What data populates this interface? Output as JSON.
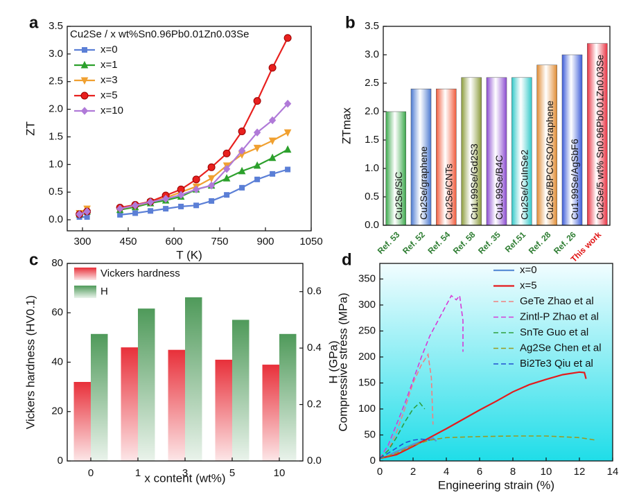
{
  "chart_data": [
    {
      "type": "line",
      "label": "a",
      "title": "Cu2Se / x wt%Sn0.96Pb0.01Zn0.03Se",
      "x_label": "T (K)",
      "y_label": "ZT",
      "x": [
        290,
        315,
        373,
        423,
        473,
        523,
        573,
        623,
        673,
        723,
        773,
        823,
        873,
        923,
        973
      ],
      "xlim": [
        250,
        1050
      ],
      "xticks": [
        300,
        450,
        600,
        750,
        900,
        1050
      ],
      "ylim": [
        -0.2,
        3.5
      ],
      "yticks": [
        {
          "value": 0,
          "label": "0.0"
        },
        0.5,
        {
          "value": 1,
          "label": "1.0"
        },
        1.5,
        {
          "value": 2,
          "label": "2.0"
        },
        2.5,
        {
          "value": 3,
          "label": "3.0"
        },
        3.5
      ],
      "legend": "upper left",
      "series": [
        {
          "name": "x=0",
          "color": "#5b7fd6",
          "marker": "square",
          "values": [
            0.05,
            0.05,
            null,
            0.09,
            0.12,
            0.16,
            0.2,
            0.24,
            0.26,
            0.34,
            0.45,
            0.58,
            0.73,
            0.83,
            0.91
          ]
        },
        {
          "name": "x=1",
          "color": "#2ca02c",
          "marker": "triangle",
          "values": [
            0.1,
            0.15,
            null,
            0.18,
            0.23,
            0.3,
            0.35,
            0.42,
            0.55,
            0.62,
            0.75,
            0.88,
            0.98,
            1.12,
            1.27
          ]
        },
        {
          "name": "x=3",
          "color": "#f0a030",
          "marker": "triangle-down",
          "values": [
            0.12,
            0.2,
            null,
            0.2,
            0.25,
            0.32,
            0.4,
            0.5,
            0.6,
            0.75,
            0.98,
            1.18,
            1.3,
            1.43,
            1.58
          ]
        },
        {
          "name": "x=5",
          "color": "#e8201e",
          "marker": "circle",
          "values": [
            0.1,
            0.15,
            null,
            0.22,
            0.27,
            0.33,
            0.44,
            0.55,
            0.73,
            0.95,
            1.2,
            1.6,
            2.15,
            2.75,
            3.29
          ]
        },
        {
          "name": "x=10",
          "color": "#b07ad8",
          "marker": "diamond",
          "values": [
            0.1,
            0.15,
            null,
            0.2,
            0.26,
            0.32,
            0.38,
            0.45,
            0.55,
            0.62,
            0.92,
            1.25,
            1.58,
            1.8,
            2.1
          ]
        }
      ]
    },
    {
      "type": "bar",
      "label": "b",
      "y_label": "ZTmax",
      "categories": [
        "Ref. 53",
        "Ref. 52",
        "Ref. 54",
        "Ref. 58",
        "Ref. 35",
        "Ref.51",
        "Ref. 28",
        "Ref. 26",
        "This work"
      ],
      "bar_labels": [
        "Cu2Se/SiC",
        "Cu2Se/graphene",
        "Cu2Se/CNTs",
        "Cu1.99Se/Gd2S3",
        "Cu1.99Se/B4C",
        "Cu2Se/CuInSe2",
        "Cu2Se/BPCCSO/Graphene",
        "Cu1.99Se/AgSbF6",
        "Cu2Se/5 wt% Sn0.96Pb0.01Zn0.03Se"
      ],
      "values": [
        2.0,
        2.4,
        2.4,
        2.6,
        2.6,
        2.6,
        2.82,
        3.0,
        3.2
      ],
      "colors": [
        "#3aa84a",
        "#4a78d0",
        "#f05a3a",
        "#8a9a3a",
        "#8a4ad0",
        "#30c8c8",
        "#e08a30",
        "#3a5ad8",
        "#e83040"
      ],
      "tick_label_colors": [
        "#2e7d32",
        "#2e7d32",
        "#2e7d32",
        "#2e7d32",
        "#2e7d32",
        "#2e7d32",
        "#2e7d32",
        "#2e7d32",
        "#e01010"
      ],
      "ylim": [
        0,
        3.5
      ],
      "yticks": [
        {
          "value": 0,
          "label": "0.0"
        },
        0.5,
        {
          "value": 1,
          "label": "1.0"
        },
        1.5,
        {
          "value": 2,
          "label": "2.0"
        },
        2.5,
        {
          "value": 3,
          "label": "3.0"
        },
        3.5
      ]
    },
    {
      "type": "bar",
      "label": "c",
      "x_label": "x content  (wt%)",
      "y_label": "Vickers hardness  (HV0.1)",
      "y2_label": "H (GPa)",
      "categories": [
        "0",
        "1",
        "3",
        "5",
        "10"
      ],
      "ylim": [
        0,
        80
      ],
      "yticks": [
        0,
        20,
        40,
        60,
        80
      ],
      "y2lim": [
        0,
        0.7
      ],
      "y2ticks": [
        {
          "value": 0,
          "label": "0.0"
        },
        0.2,
        0.4,
        0.6
      ],
      "legend": "upper left",
      "series": [
        {
          "name": "Vickers hardness",
          "color": "#e8303a",
          "values": [
            32,
            46,
            45,
            41,
            39
          ]
        },
        {
          "name": "H",
          "color": "#4f9a5a",
          "axis": "y2",
          "values": [
            0.45,
            0.54,
            0.58,
            0.5,
            0.45
          ]
        }
      ]
    },
    {
      "type": "line",
      "label": "d",
      "x_label": "Engineering strain (%)",
      "y_label": "Compressive stress (MPa)",
      "xlim": [
        0,
        14
      ],
      "xticks": [
        0,
        2,
        4,
        6,
        8,
        10,
        12,
        14
      ],
      "ylim": [
        0,
        380
      ],
      "yticks": [
        0,
        50,
        100,
        150,
        200,
        250,
        300,
        350
      ],
      "background": [
        "#f2fdff",
        "#1fdde8"
      ],
      "legend": "upper right",
      "series": [
        {
          "name": "x=0",
          "color": "#5b8fd6",
          "x": [
            0,
            0.5,
            1,
            1.5,
            2,
            2.5,
            3,
            3.2,
            3.4
          ],
          "values": [
            5,
            10,
            18,
            25,
            32,
            38,
            42,
            44,
            38
          ]
        },
        {
          "name": "x=5",
          "color": "#e41a1c",
          "x": [
            0,
            1,
            2,
            3,
            4,
            5,
            6,
            7,
            8,
            9,
            10,
            11,
            12,
            12.3,
            12.4
          ],
          "values": [
            5,
            12,
            28,
            45,
            62,
            80,
            98,
            115,
            133,
            147,
            157,
            166,
            171,
            170,
            158
          ]
        },
        {
          "name": "GeTe Zhao et al",
          "color": "#f08080",
          "dashed": true,
          "x": [
            0,
            0.5,
            1,
            1.5,
            2,
            2.5,
            2.9,
            3.1,
            3.2
          ],
          "values": [
            5,
            20,
            55,
            100,
            150,
            185,
            205,
            160,
            70
          ]
        },
        {
          "name": "Zintl-P Zhao et al",
          "color": "#d63ad6",
          "dashed": true,
          "x": [
            0,
            0.5,
            1,
            1.5,
            2,
            2.5,
            3,
            3.5,
            4,
            4.3,
            4.6,
            4.8,
            5,
            5
          ],
          "values": [
            5,
            30,
            70,
            110,
            155,
            200,
            240,
            270,
            300,
            318,
            310,
            318,
            270,
            210
          ]
        },
        {
          "name": "SnTe Guo et al",
          "color": "#2e9e3e",
          "dashed": true,
          "x": [
            0,
            0.5,
            1,
            1.5,
            2,
            2.4,
            2.7
          ],
          "values": [
            5,
            20,
            45,
            75,
            100,
            112,
            100
          ]
        },
        {
          "name": "Ag2Se Chen et al",
          "color": "#9a9a20",
          "dashed": true,
          "x": [
            0,
            1,
            2,
            3,
            4,
            6,
            8,
            10,
            12,
            13
          ],
          "values": [
            5,
            15,
            30,
            40,
            45,
            47,
            48,
            48,
            45,
            40
          ]
        },
        {
          "name": "Bi2Te3 Qiu et al",
          "color": "#2050d0",
          "dashed": true,
          "x": [
            0,
            0.5,
            1,
            1.5,
            2,
            2.5,
            3
          ],
          "values": [
            5,
            15,
            25,
            35,
            40,
            42,
            40
          ]
        }
      ]
    }
  ]
}
